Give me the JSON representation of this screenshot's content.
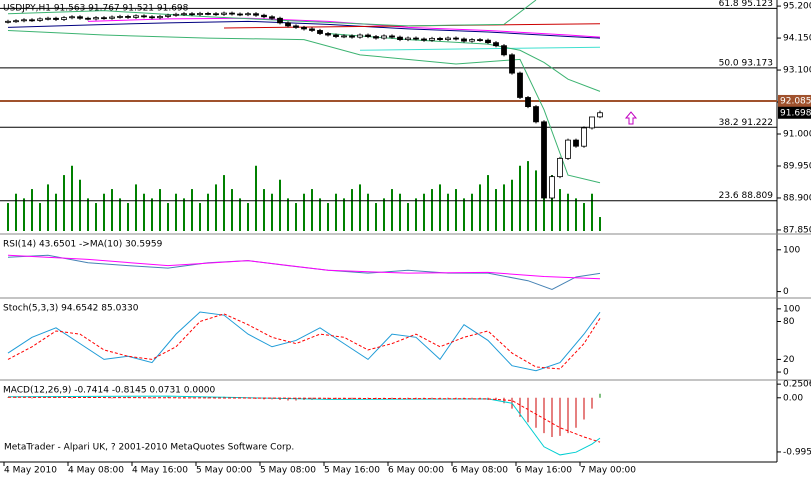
{
  "chart_data": [
    {
      "type": "candlestick",
      "title": "USDJPY,H1  91.563 91.767 91.521 91.698",
      "ylim": [
        87.75,
        95.4
      ],
      "yticks": [
        {
          "value": 95.2,
          "label": "95.200"
        },
        {
          "value": 94.15,
          "label": "94.150"
        },
        {
          "value": 93.1,
          "label": "93.100"
        },
        {
          "value": 92.05,
          "label": "92.050"
        },
        {
          "value": 91,
          "label": "91.000"
        },
        {
          "value": 89.95,
          "label": "89.950"
        },
        {
          "value": 88.9,
          "label": "88.900"
        },
        {
          "value": 87.85,
          "label": "87.850"
        }
      ],
      "open": [
        94.68,
        94.7,
        94.72,
        94.75,
        94.73,
        94.78,
        94.8,
        94.76,
        94.82,
        94.85,
        94.8,
        94.78,
        94.82,
        94.8,
        94.84,
        94.86,
        94.83,
        94.88,
        94.85,
        94.82,
        94.86,
        94.9,
        94.93,
        94.95,
        94.92,
        94.96,
        94.95,
        94.93,
        94.97,
        94.94,
        94.92,
        94.95,
        94.9,
        94.85,
        94.8,
        94.65,
        94.55,
        94.5,
        94.45,
        94.4,
        94.3,
        94.25,
        94.2,
        94.22,
        94.18,
        94.25,
        94.2,
        94.15,
        94.22,
        94.18,
        94.1,
        94.15,
        94.12,
        94.08,
        94.14,
        94.1,
        94.15,
        94.12,
        94.05,
        94.1,
        94.08,
        94.0,
        93.9,
        93.6,
        93.0,
        92.2,
        91.9,
        91.4,
        88.9,
        89.6,
        90.2,
        90.8,
        90.6,
        91.2,
        91.563
      ],
      "high": [
        94.75,
        94.77,
        94.8,
        94.8,
        94.83,
        94.85,
        94.85,
        94.87,
        94.9,
        94.9,
        94.85,
        94.87,
        94.87,
        94.89,
        94.91,
        94.91,
        94.93,
        94.93,
        94.9,
        94.91,
        94.95,
        94.98,
        95.0,
        95.0,
        95.01,
        95.01,
        95.0,
        95.02,
        95.02,
        94.99,
        95.0,
        95.0,
        94.95,
        94.9,
        94.85,
        94.7,
        94.6,
        94.55,
        94.5,
        94.45,
        94.35,
        94.3,
        94.27,
        94.27,
        94.3,
        94.3,
        94.25,
        94.27,
        94.27,
        94.23,
        94.2,
        94.2,
        94.17,
        94.19,
        94.19,
        94.2,
        94.2,
        94.17,
        94.15,
        94.15,
        94.13,
        94.05,
        93.95,
        93.65,
        93.05,
        92.25,
        91.95,
        91.45,
        89.65,
        90.25,
        90.85,
        90.85,
        91.25,
        91.55,
        91.767
      ],
      "low": [
        94.63,
        94.65,
        94.67,
        94.68,
        94.68,
        94.73,
        94.71,
        94.71,
        94.77,
        94.75,
        94.73,
        94.73,
        94.75,
        94.75,
        94.79,
        94.78,
        94.78,
        94.8,
        94.77,
        94.77,
        94.81,
        94.85,
        94.88,
        94.87,
        94.87,
        94.9,
        94.88,
        94.88,
        94.89,
        94.87,
        94.87,
        94.85,
        94.8,
        94.75,
        94.6,
        94.5,
        94.45,
        94.4,
        94.35,
        94.25,
        94.2,
        94.15,
        94.15,
        94.13,
        94.13,
        94.15,
        94.1,
        94.1,
        94.13,
        94.05,
        94.05,
        94.07,
        94.03,
        94.03,
        94.05,
        94.05,
        94.07,
        94.0,
        94.0,
        94.03,
        93.95,
        93.85,
        93.55,
        92.95,
        92.15,
        91.85,
        91.35,
        88.85,
        88.85,
        89.55,
        90.15,
        90.55,
        90.55,
        91.15,
        91.521
      ],
      "close": [
        94.7,
        94.72,
        94.75,
        94.73,
        94.78,
        94.8,
        94.76,
        94.82,
        94.85,
        94.8,
        94.78,
        94.82,
        94.8,
        94.84,
        94.86,
        94.83,
        94.88,
        94.85,
        94.82,
        94.86,
        94.9,
        94.93,
        94.95,
        94.92,
        94.96,
        94.95,
        94.93,
        94.97,
        94.94,
        94.92,
        94.95,
        94.9,
        94.85,
        94.8,
        94.65,
        94.55,
        94.5,
        94.45,
        94.4,
        94.3,
        94.25,
        94.2,
        94.22,
        94.18,
        94.25,
        94.2,
        94.15,
        94.22,
        94.18,
        94.1,
        94.15,
        94.12,
        94.08,
        94.14,
        94.1,
        94.15,
        94.12,
        94.05,
        94.1,
        94.08,
        94.0,
        93.9,
        93.6,
        93.0,
        92.2,
        91.9,
        91.4,
        88.9,
        89.6,
        90.2,
        90.8,
        90.6,
        91.2,
        91.56,
        91.698
      ],
      "color_up": "#ffffff",
      "color_down": "#000000",
      "volume": [
        6,
        8,
        7,
        9,
        6,
        10,
        8,
        12,
        14,
        11,
        7,
        6,
        8,
        9,
        7,
        6,
        10,
        8,
        7,
        9,
        6,
        8,
        7,
        9,
        6,
        8,
        10,
        12,
        9,
        7,
        6,
        14,
        9,
        8,
        11,
        7,
        6,
        8,
        9,
        7,
        6,
        8,
        7,
        9,
        10,
        8,
        6,
        7,
        9,
        8,
        6,
        7,
        8,
        9,
        10,
        8,
        9,
        7,
        8,
        10,
        12,
        9,
        10,
        11,
        14,
        15,
        13,
        18,
        12,
        9,
        8,
        7,
        6,
        8,
        3
      ],
      "volume_ylim": [
        0,
        50
      ],
      "volume_color": "#008000",
      "lines": [
        {
          "color": "#000080",
          "x": [
            0,
            10,
            20,
            30,
            40,
            50,
            60,
            70,
            74
          ],
          "values": [
            94.5,
            94.58,
            94.65,
            94.7,
            94.6,
            94.45,
            94.35,
            94.2,
            94.15
          ]
        },
        {
          "color": "#ff00ff",
          "x": [
            10,
            20,
            30,
            40,
            50,
            60,
            70,
            74
          ],
          "values": [
            94.7,
            94.78,
            94.8,
            94.7,
            94.5,
            94.4,
            94.25,
            94.18
          ]
        },
        {
          "color": "#cc0000",
          "x": [
            27,
            74
          ],
          "values": [
            94.48,
            94.62
          ]
        },
        {
          "color": "#40e0d0",
          "x": [
            44,
            74
          ],
          "values": [
            93.75,
            93.85
          ]
        },
        {
          "color": "#3cb371",
          "x": [
            0,
            12,
            25,
            37,
            50,
            62,
            66
          ],
          "values": [
            94.95,
            95.05,
            94.85,
            94.7,
            94.55,
            94.6,
            95.4
          ]
        },
        {
          "color": "#3cb371",
          "x": [
            0,
            12,
            25,
            37,
            44,
            56,
            64,
            67,
            70,
            74
          ],
          "values": [
            94.4,
            94.25,
            94.15,
            94.1,
            93.6,
            93.3,
            93.45,
            91.8,
            89.65,
            89.4
          ]
        },
        {
          "color": "#3cb371",
          "x": [
            40,
            50,
            60,
            64,
            67,
            70,
            74
          ],
          "values": [
            94.3,
            94.1,
            93.95,
            93.75,
            93.35,
            92.8,
            92.4
          ]
        }
      ],
      "levels": [
        {
          "value": 95.123,
          "label": "61.8 95.123"
        },
        {
          "value": 93.173,
          "label": "50.0 93.173"
        },
        {
          "value": 91.222,
          "label": "38.2 91.222"
        },
        {
          "value": 88.809,
          "label": "23.6 88.809"
        }
      ],
      "price_line": {
        "value": 92.085,
        "label": "92.085",
        "color": "#a0522d"
      },
      "bid": {
        "value": 91.698,
        "label": "91.698"
      }
    },
    {
      "type": "line",
      "title": "RSI(14) 43.6501  ->MA(10) 30.5959",
      "ylim": [
        -13,
        133
      ],
      "yticks": [
        100,
        0
      ],
      "series": [
        {
          "color": "#4682b4",
          "x": [
            0,
            5,
            10,
            15,
            20,
            25,
            30,
            35,
            40,
            45,
            50,
            55,
            60,
            65,
            68,
            71,
            74
          ],
          "values": [
            82,
            87,
            69,
            62,
            56,
            69,
            74,
            62,
            51,
            44,
            51,
            44,
            44,
            26,
            5,
            35,
            43.65
          ]
        },
        {
          "color": "#ff00ff",
          "x": [
            0,
            10,
            20,
            30,
            40,
            50,
            60,
            67,
            74
          ],
          "values": [
            87,
            77,
            62,
            74,
            51,
            44,
            46,
            36,
            30.6
          ]
        }
      ]
    },
    {
      "type": "line",
      "title": "Stoch(5,3,3) 94.6542 85.0330",
      "ylim": [
        -11,
        114
      ],
      "yticks": [
        100,
        80,
        20,
        0
      ],
      "series": [
        {
          "color": "#1e9bd7",
          "x": [
            0,
            3,
            6,
            9,
            12,
            15,
            18,
            21,
            24,
            27,
            30,
            33,
            36,
            39,
            42,
            45,
            48,
            51,
            54,
            57,
            60,
            63,
            66,
            69,
            72,
            74
          ],
          "values": [
            30,
            55,
            70,
            45,
            20,
            25,
            15,
            60,
            95,
            90,
            60,
            40,
            50,
            70,
            45,
            20,
            60,
            55,
            20,
            75,
            50,
            10,
            2,
            15,
            60,
            94.65
          ]
        },
        {
          "color": "#ff0000",
          "dash": true,
          "x": [
            0,
            3,
            6,
            9,
            12,
            15,
            18,
            21,
            24,
            27,
            30,
            33,
            36,
            39,
            42,
            45,
            48,
            51,
            54,
            57,
            60,
            63,
            66,
            69,
            72,
            74
          ],
          "values": [
            20,
            40,
            65,
            60,
            35,
            25,
            20,
            40,
            80,
            92,
            75,
            55,
            45,
            60,
            55,
            35,
            45,
            60,
            40,
            55,
            65,
            30,
            8,
            5,
            45,
            85.03
          ]
        }
      ]
    },
    {
      "type": "macd",
      "title": "MACD(12,26,9) -0.7414 -0.8145 0.0731 0.0000",
      "ylim": [
        -1.18,
        0.29
      ],
      "yticks": [
        0.2506,
        {
          "value": 0,
          "label": "0.00"
        },
        -0.9951
      ],
      "histogram": [
        0.01,
        0.02,
        0.01,
        -0.01,
        0.02,
        0.01,
        0.02,
        0.01,
        -0.01,
        0.01,
        0.02,
        0.01,
        0.01,
        -0.01,
        0.01,
        0.02,
        0.01,
        0.01,
        -0.01,
        0.01,
        0.02,
        0.01,
        0.02,
        0.01,
        0.01,
        -0.01,
        0.01,
        0.02,
        0.01,
        0.01,
        -0.01,
        -0.02,
        -0.03,
        -0.03,
        -0.04,
        -0.05,
        -0.05,
        -0.04,
        -0.04,
        -0.03,
        -0.03,
        -0.02,
        -0.03,
        -0.02,
        -0.02,
        -0.01,
        -0.02,
        -0.01,
        -0.02,
        -0.03,
        -0.02,
        -0.02,
        -0.01,
        -0.02,
        -0.02,
        -0.01,
        -0.02,
        -0.03,
        -0.02,
        -0.03,
        -0.04,
        -0.05,
        -0.1,
        -0.2,
        -0.35,
        -0.45,
        -0.55,
        -0.65,
        -0.72,
        -0.7,
        -0.65,
        -0.55,
        -0.4,
        -0.2,
        0.0731
      ],
      "color_pos": "#008000",
      "color_neg": "#cc0000",
      "series": [
        {
          "color": "#00ced1",
          "x": [
            0,
            20,
            40,
            60,
            63,
            65,
            67,
            69,
            71,
            73,
            74
          ],
          "values": [
            0.02,
            0.03,
            -0.03,
            -0.02,
            -0.1,
            -0.5,
            -0.9,
            -1.05,
            -1.0,
            -0.85,
            -0.7414
          ]
        },
        {
          "color": "#ff0000",
          "dash": true,
          "x": [
            0,
            60,
            63,
            66,
            69,
            72,
            74
          ],
          "values": [
            0.01,
            -0.02,
            -0.05,
            -0.3,
            -0.55,
            -0.72,
            -0.8145
          ]
        }
      ]
    }
  ],
  "time_axis": [
    "4 May 2010",
    "4 May 08:00",
    "4 May 16:00",
    "5 May 00:00",
    "5 May 08:00",
    "5 May 16:00",
    "6 May 00:00",
    "6 May 08:00",
    "6 May 16:00",
    "7 May 00:00"
  ],
  "footer": "MetaTrader - Alpari UK, ? 2001-2010 MetaQuotes Software Corp."
}
